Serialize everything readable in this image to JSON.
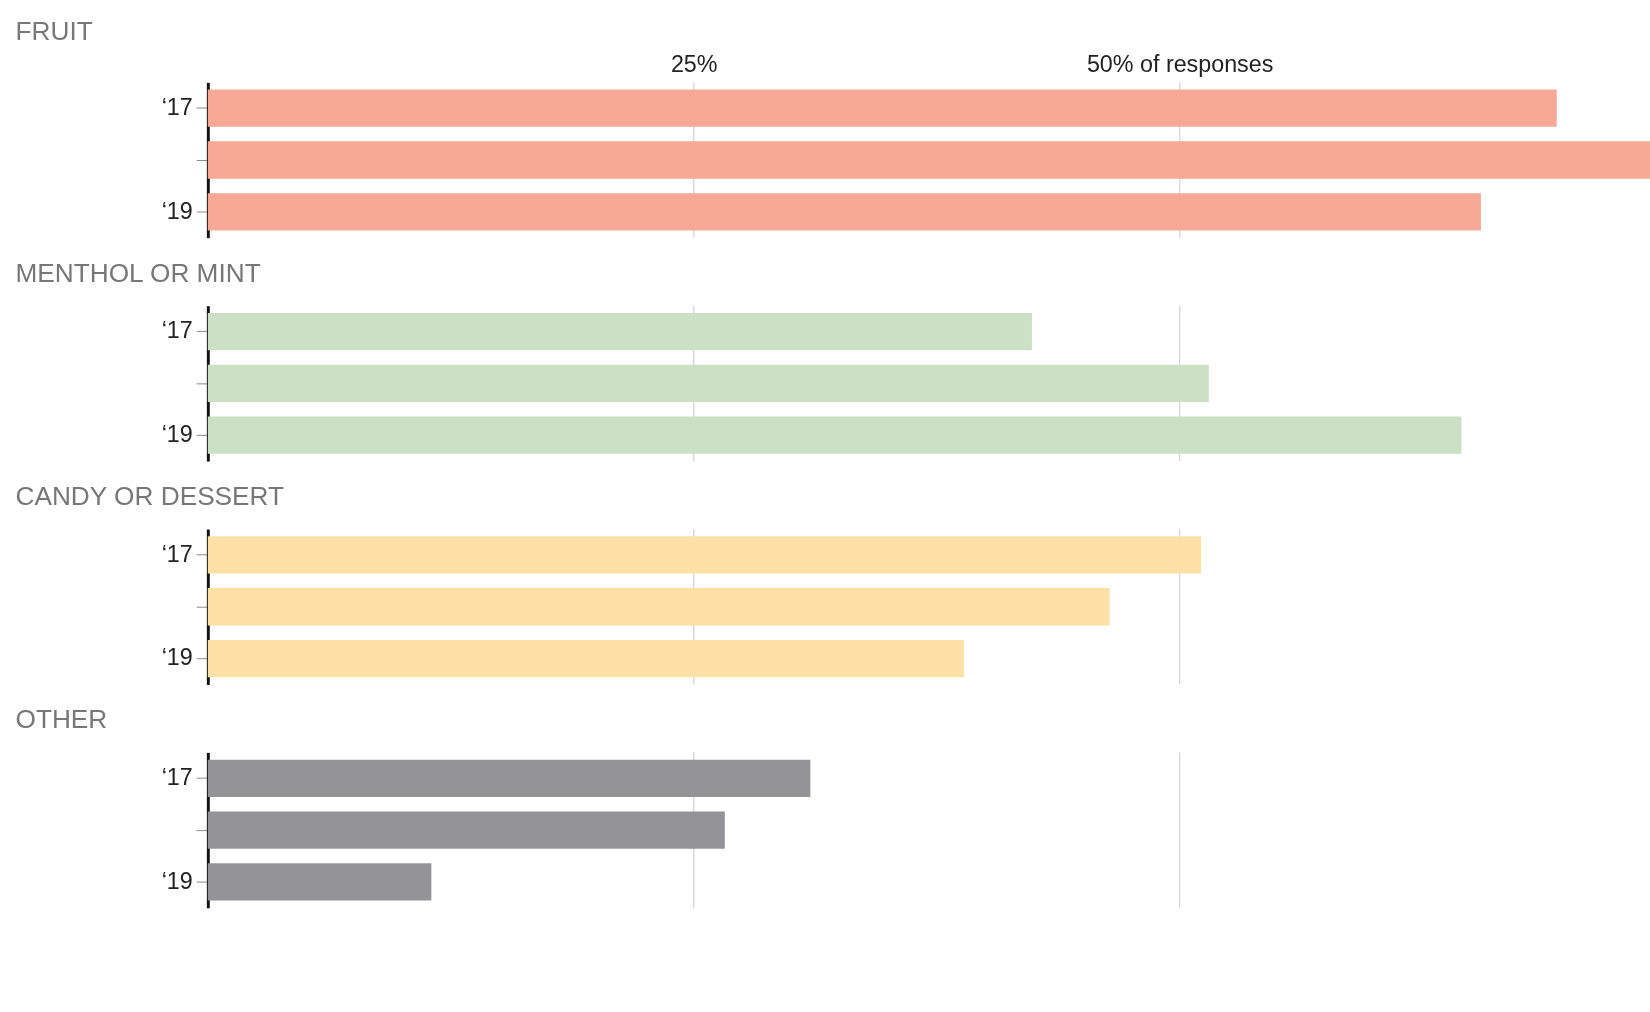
{
  "chart_data": [
    {
      "type": "bar",
      "orientation": "horizontal",
      "title": "FRUIT",
      "categories": [
        "‘17",
        null,
        "‘19"
      ],
      "series": [
        {
          "color": "#f7a995",
          "values": [
            69.4,
            74.2,
            65.5
          ]
        }
      ],
      "xlim": [
        0,
        74.2
      ],
      "xticks": [
        {
          "value": 25,
          "label": "25%"
        },
        {
          "value": 50,
          "label": "50% of responses"
        }
      ],
      "grid": "x"
    },
    {
      "type": "bar",
      "orientation": "horizontal",
      "title": "MENTHOL OR MINT",
      "categories": [
        "‘17",
        null,
        "‘19"
      ],
      "series": [
        {
          "color": "#cce0c6",
          "values": [
            42.4,
            51.5,
            64.5
          ]
        }
      ],
      "xlim": [
        0,
        74.2
      ],
      "grid": "x",
      "tick_labels": "y"
    },
    {
      "type": "bar",
      "orientation": "horizontal",
      "title": "CANDY OR DESSERT",
      "categories": [
        "‘17",
        null,
        "‘19"
      ],
      "series": [
        {
          "color": "#fde0a6",
          "values": [
            51.1,
            46.4,
            38.9
          ]
        }
      ],
      "xlim": [
        0,
        74.2
      ],
      "grid": "x",
      "tick_labels": "y"
    },
    {
      "type": "bar",
      "orientation": "horizontal",
      "title": "OTHER",
      "categories": [
        "‘17",
        null,
        "‘19"
      ],
      "series": [
        {
          "color": "#949496",
          "values": [
            31.0,
            26.6,
            11.5
          ]
        }
      ],
      "xlim": [
        0,
        74.2
      ],
      "grid": "x",
      "tick_labels": "y"
    }
  ]
}
